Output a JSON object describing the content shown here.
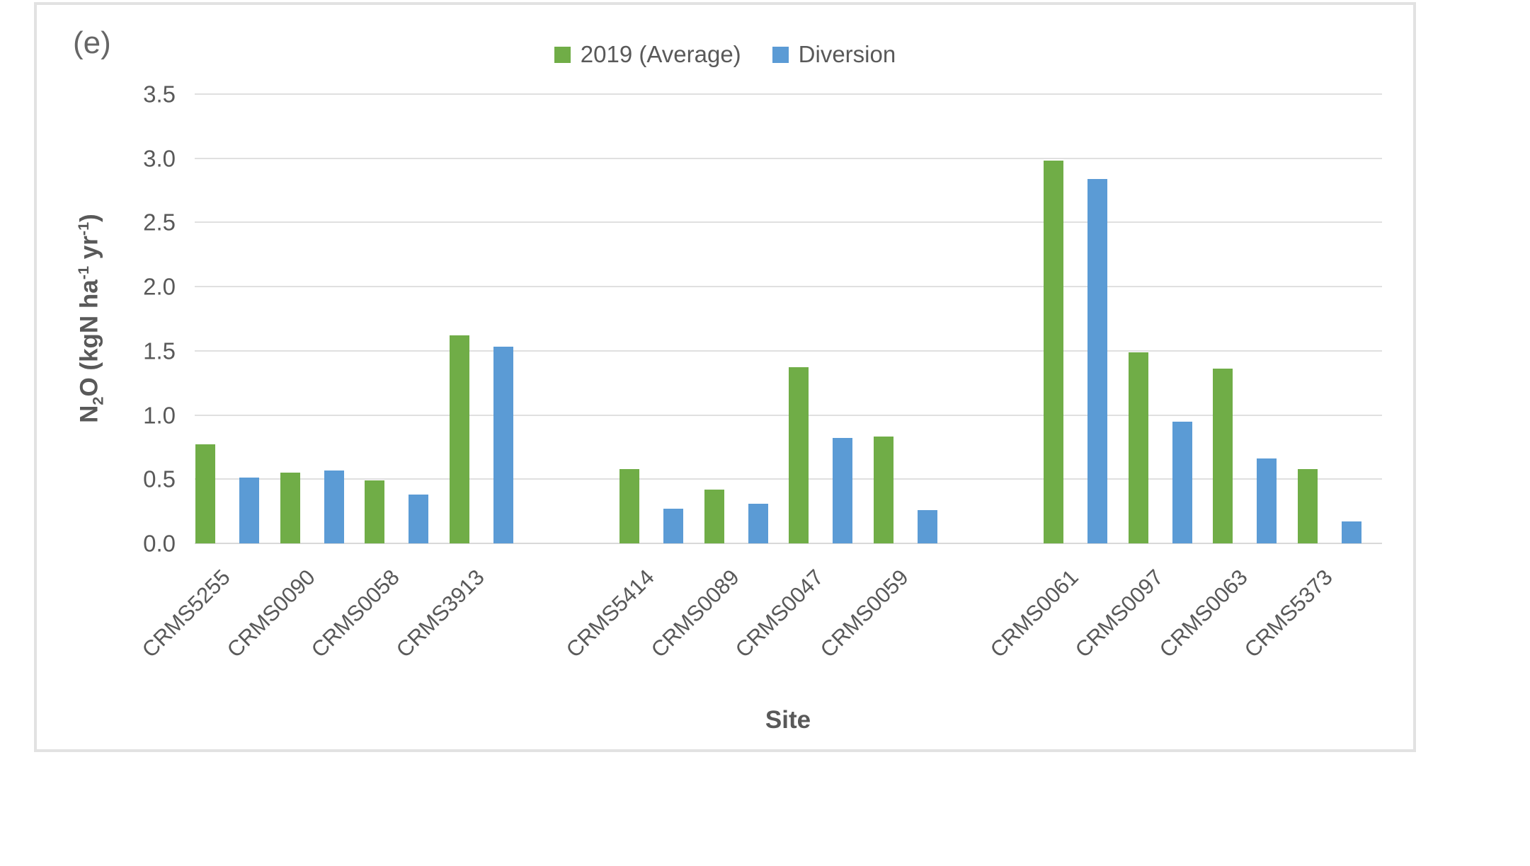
{
  "chart_data": {
    "type": "bar",
    "panel_label": "(e)",
    "title": "",
    "xlabel": "Site",
    "ylabel_text": "N2O (kgN ha-1 yr-1)",
    "ylabel_segments": [
      {
        "t": "N"
      },
      {
        "t": "2",
        "style": "sub"
      },
      {
        "t": "O (kgN ha"
      },
      {
        "t": "-1",
        "style": "sup"
      },
      {
        "t": " yr"
      },
      {
        "t": "-1",
        "style": "sup"
      },
      {
        "t": ")"
      }
    ],
    "categories": [
      "CRMS5255",
      "CRMS0090",
      "CRMS0058",
      "CRMS3913",
      "CRMS5414",
      "CRMS0089",
      "CRMS0047",
      "CRMS0059",
      "CRMS0061",
      "CRMS0097",
      "CRMS0063",
      "CRMS5373"
    ],
    "groups": [
      4,
      4,
      4
    ],
    "series": [
      {
        "name": "2019 (Average)",
        "color": "#70AD47",
        "values": [
          0.77,
          0.55,
          0.49,
          1.62,
          0.58,
          0.42,
          1.37,
          0.83,
          2.98,
          1.49,
          1.36,
          0.58
        ]
      },
      {
        "name": "Diversion",
        "color": "#5B9BD5",
        "values": [
          0.51,
          0.57,
          0.38,
          1.53,
          0.27,
          0.31,
          0.82,
          0.26,
          2.84,
          0.95,
          0.66,
          0.17
        ]
      }
    ],
    "ylim": [
      0,
      3.5
    ],
    "ytick_step": 0.5,
    "ytick_labels": [
      "0.0",
      "0.5",
      "1.0",
      "1.5",
      "2.0",
      "2.5",
      "3.0",
      "3.5"
    ],
    "grid": true,
    "legend_position": "top-center",
    "text_color": "#595959",
    "grid_color": "#E0E0E0"
  }
}
